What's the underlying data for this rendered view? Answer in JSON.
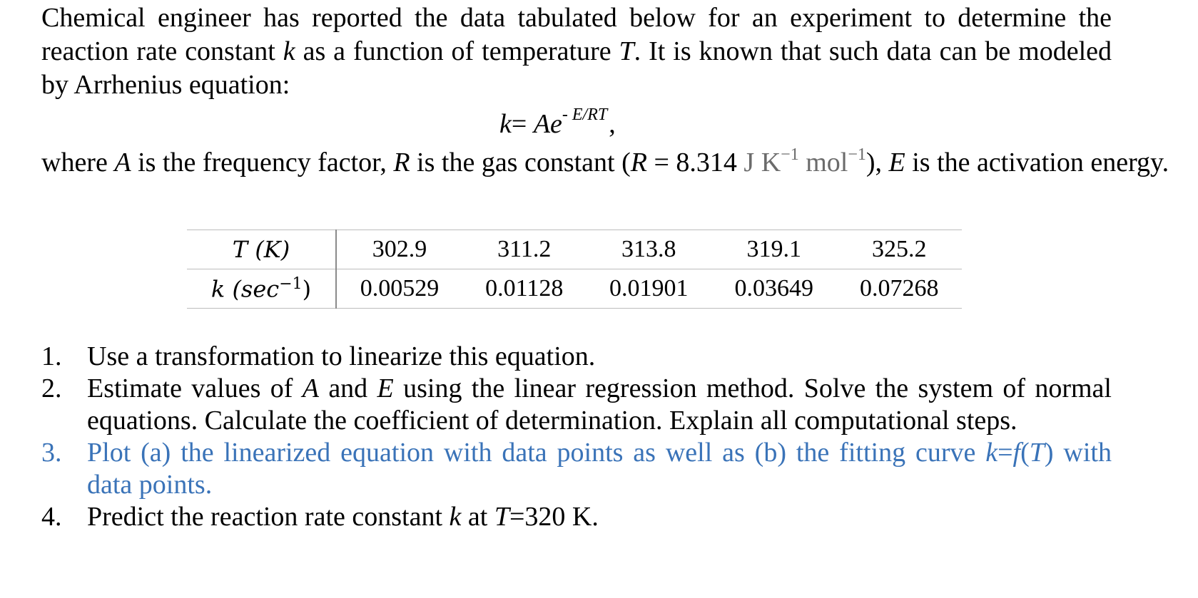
{
  "intro": {
    "part1": "Chemical engineer has reported the data tabulated below for an experiment to determine the reaction rate constant ",
    "k": "k",
    "part2": " as a function of temperature ",
    "T": "T",
    "part3": ". It is known that such data can be modeled by Arrhenius equation:"
  },
  "equation": {
    "lhs": "k",
    "eq": "= ",
    "A": "A",
    "e": "e",
    "exponent": "- E/RT",
    "comma": ","
  },
  "where": {
    "t1": "where ",
    "A": "A",
    "t2": " is the frequency factor, ",
    "R": "R",
    "t3": " is the gas constant (",
    "R2": "R",
    "t4": " = 8.314 ",
    "unit_J": "J K",
    "sup1": "−1",
    "unit_mol": " mol",
    "sup2": "−1",
    "t5": "), ",
    "E": "E",
    "t6": " is the activation energy."
  },
  "table": {
    "row_t_label": "T (K)",
    "row_k_label_italic": "k (sec",
    "row_k_label_sup": "−1",
    "row_k_label_close": ")",
    "temperatures": [
      "302.9",
      "311.2",
      "313.8",
      "319.1",
      "325.2"
    ],
    "rate_constants": [
      "0.00529",
      "0.01128",
      "0.01901",
      "0.03649",
      "0.07268"
    ]
  },
  "questions": [
    {
      "num": "1.",
      "parts": [
        {
          "text": "Use a transformation to linearize this equation.",
          "italic": false
        }
      ]
    },
    {
      "num": "2.",
      "parts": [
        {
          "text": "Estimate values of ",
          "italic": false
        },
        {
          "text": "A",
          "italic": true
        },
        {
          "text": " and ",
          "italic": false
        },
        {
          "text": "E",
          "italic": true
        },
        {
          "text": " using the linear regression method. Solve the system of normal equations. Calculate the coefficient of determination. Explain all computational steps.",
          "italic": false
        }
      ]
    },
    {
      "num": "3.",
      "highlight": true,
      "parts": [
        {
          "text": "Plot (a) the linearized equation with data points as well as (b) the fitting curve ",
          "italic": false
        },
        {
          "text": "k",
          "italic": true
        },
        {
          "text": "=",
          "italic": false
        },
        {
          "text": "f",
          "italic": true
        },
        {
          "text": "(",
          "italic": false
        },
        {
          "text": "T",
          "italic": true
        },
        {
          "text": ") with data points.",
          "italic": false
        }
      ]
    },
    {
      "num": "4.",
      "parts": [
        {
          "text": "Predict the reaction rate constant ",
          "italic": false
        },
        {
          "text": "k",
          "italic": true
        },
        {
          "text": " at ",
          "italic": false
        },
        {
          "text": "T",
          "italic": true
        },
        {
          "text": "=320 K.",
          "italic": false
        }
      ]
    }
  ],
  "colors": {
    "text": "#000000",
    "highlight": "#3a73b8",
    "unit_gray": "#6b6b6b",
    "rule": "#bdbdbd"
  }
}
